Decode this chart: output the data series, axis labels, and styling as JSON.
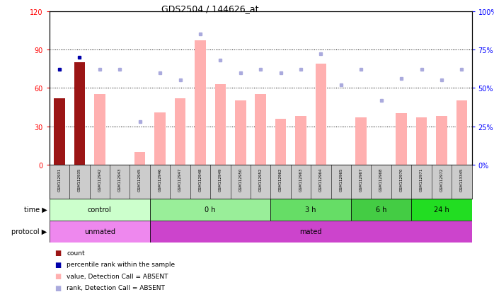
{
  "title": "GDS2504 / 144626_at",
  "samples": [
    "GSM112931",
    "GSM112935",
    "GSM112942",
    "GSM112943",
    "GSM112945",
    "GSM112946",
    "GSM112947",
    "GSM112948",
    "GSM112949",
    "GSM112950",
    "GSM112952",
    "GSM112962",
    "GSM112963",
    "GSM112964",
    "GSM112965",
    "GSM112967",
    "GSM112968",
    "GSM112970",
    "GSM112971",
    "GSM112972",
    "GSM113345"
  ],
  "bar_values": [
    52,
    80,
    55,
    0,
    10,
    41,
    52,
    97,
    63,
    50,
    55,
    36,
    38,
    79,
    0,
    37,
    0,
    40,
    37,
    38,
    50
  ],
  "bar_is_dark": [
    true,
    true,
    false,
    false,
    false,
    false,
    false,
    false,
    false,
    false,
    false,
    false,
    false,
    false,
    false,
    false,
    false,
    false,
    false,
    false,
    false
  ],
  "rank_values": [
    62,
    70,
    62,
    62,
    28,
    60,
    55,
    85,
    68,
    60,
    62,
    60,
    62,
    72,
    52,
    62,
    42,
    56,
    62,
    55,
    62
  ],
  "rank_is_dark": [
    true,
    true,
    false,
    false,
    false,
    false,
    false,
    false,
    false,
    false,
    false,
    false,
    false,
    false,
    false,
    false,
    false,
    false,
    false,
    false,
    false
  ],
  "bar_color_dark": "#9b1515",
  "bar_color_light": "#ffb0b0",
  "rank_color_dark": "#0000aa",
  "rank_color_light": "#aaaadd",
  "yticks_left": [
    0,
    30,
    60,
    90,
    120
  ],
  "yticks_right": [
    0,
    25,
    50,
    75,
    100
  ],
  "time_groups": [
    {
      "label": "control",
      "start": 0,
      "end": 5,
      "color": "#ccffcc"
    },
    {
      "label": "0 h",
      "start": 5,
      "end": 11,
      "color": "#99ee99"
    },
    {
      "label": "3 h",
      "start": 11,
      "end": 15,
      "color": "#66dd66"
    },
    {
      "label": "6 h",
      "start": 15,
      "end": 18,
      "color": "#44cc44"
    },
    {
      "label": "24 h",
      "start": 18,
      "end": 21,
      "color": "#22dd22"
    }
  ],
  "protocol_groups": [
    {
      "label": "unmated",
      "start": 0,
      "end": 5,
      "color": "#ee88ee"
    },
    {
      "label": "mated",
      "start": 5,
      "end": 21,
      "color": "#cc44cc"
    }
  ],
  "bg_color": "#ffffff",
  "sample_bg": "#cccccc"
}
